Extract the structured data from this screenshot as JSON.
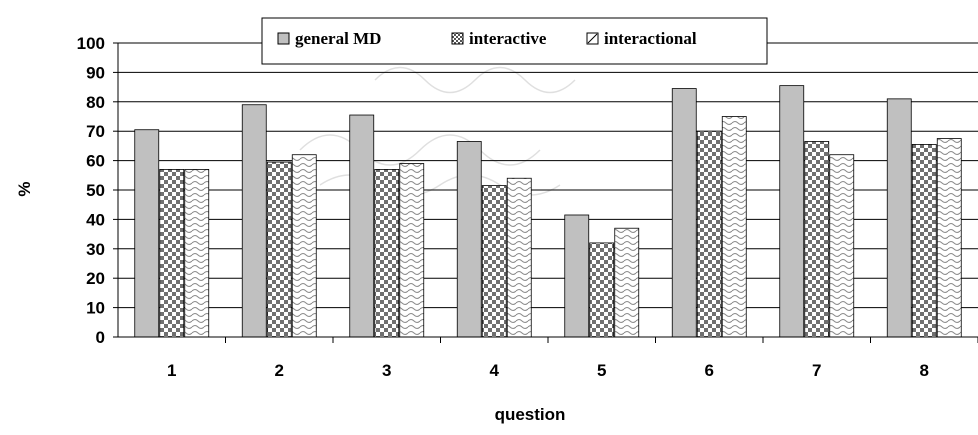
{
  "chart_data": {
    "type": "bar",
    "title": "",
    "xlabel": "question",
    "ylabel": "%",
    "categories": [
      "1",
      "2",
      "3",
      "4",
      "5",
      "6",
      "7",
      "8"
    ],
    "ylim": [
      0,
      100
    ],
    "yticks": [
      "0",
      "10",
      "20",
      "30",
      "40",
      "50",
      "60",
      "70",
      "80",
      "90",
      "100"
    ],
    "grid": true,
    "legend_position": "top-center",
    "series": [
      {
        "name": "general MD",
        "values": [
          70.5,
          79,
          75.5,
          66.5,
          41.5,
          84.5,
          85.5,
          81
        ],
        "pattern": "solid",
        "color": "#c0c0c0"
      },
      {
        "name": "interactive",
        "values": [
          57,
          59.5,
          57,
          51.5,
          32,
          70,
          66.5,
          65.5
        ],
        "pattern": "checker",
        "color": "#808080"
      },
      {
        "name": "interactional",
        "values": [
          57,
          62,
          59,
          54,
          37,
          75,
          62,
          67.5
        ],
        "pattern": "wave",
        "color": "#ffffff"
      }
    ]
  }
}
